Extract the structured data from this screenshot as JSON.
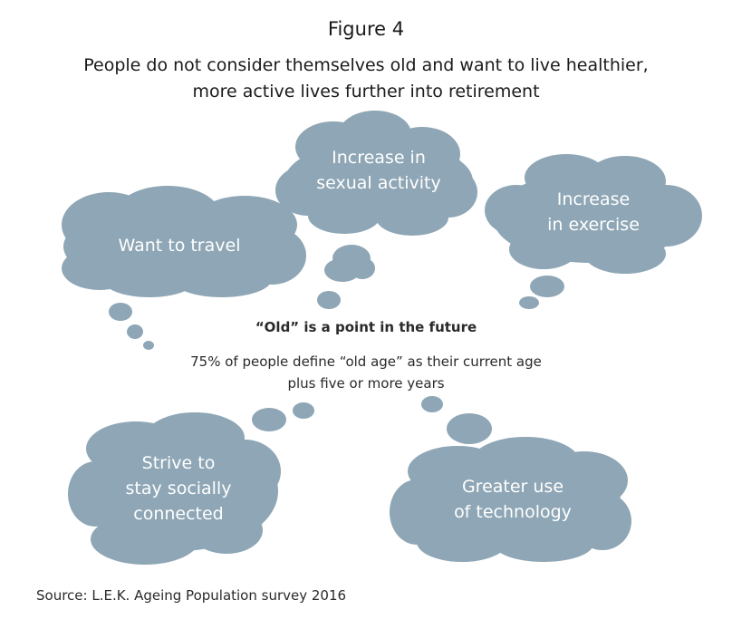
{
  "figure_label": "Figure 4",
  "title": {
    "line1": "People do not consider themselves old and want to live healthier,",
    "line2": "more active lives further into retirement"
  },
  "clouds": {
    "travel": {
      "lines": [
        "Want to travel"
      ]
    },
    "sexual": {
      "lines": [
        "Increase in",
        "sexual activity"
      ]
    },
    "exercise": {
      "lines": [
        "Increase",
        "in exercise"
      ]
    },
    "social": {
      "lines": [
        "Strive to",
        "stay socially",
        "connected"
      ]
    },
    "technology": {
      "lines": [
        "Greater use",
        "of technology"
      ]
    }
  },
  "center": {
    "heading": "“Old” is a point in the future",
    "desc_line1": "75% of people define “old age” as their current age",
    "desc_line2": "plus five or more years"
  },
  "source": "Source: L.E.K. Ageing Population survey 2016",
  "colors": {
    "cloud_fill": "#8ea6b5",
    "cloud_text": "#ffffff"
  }
}
